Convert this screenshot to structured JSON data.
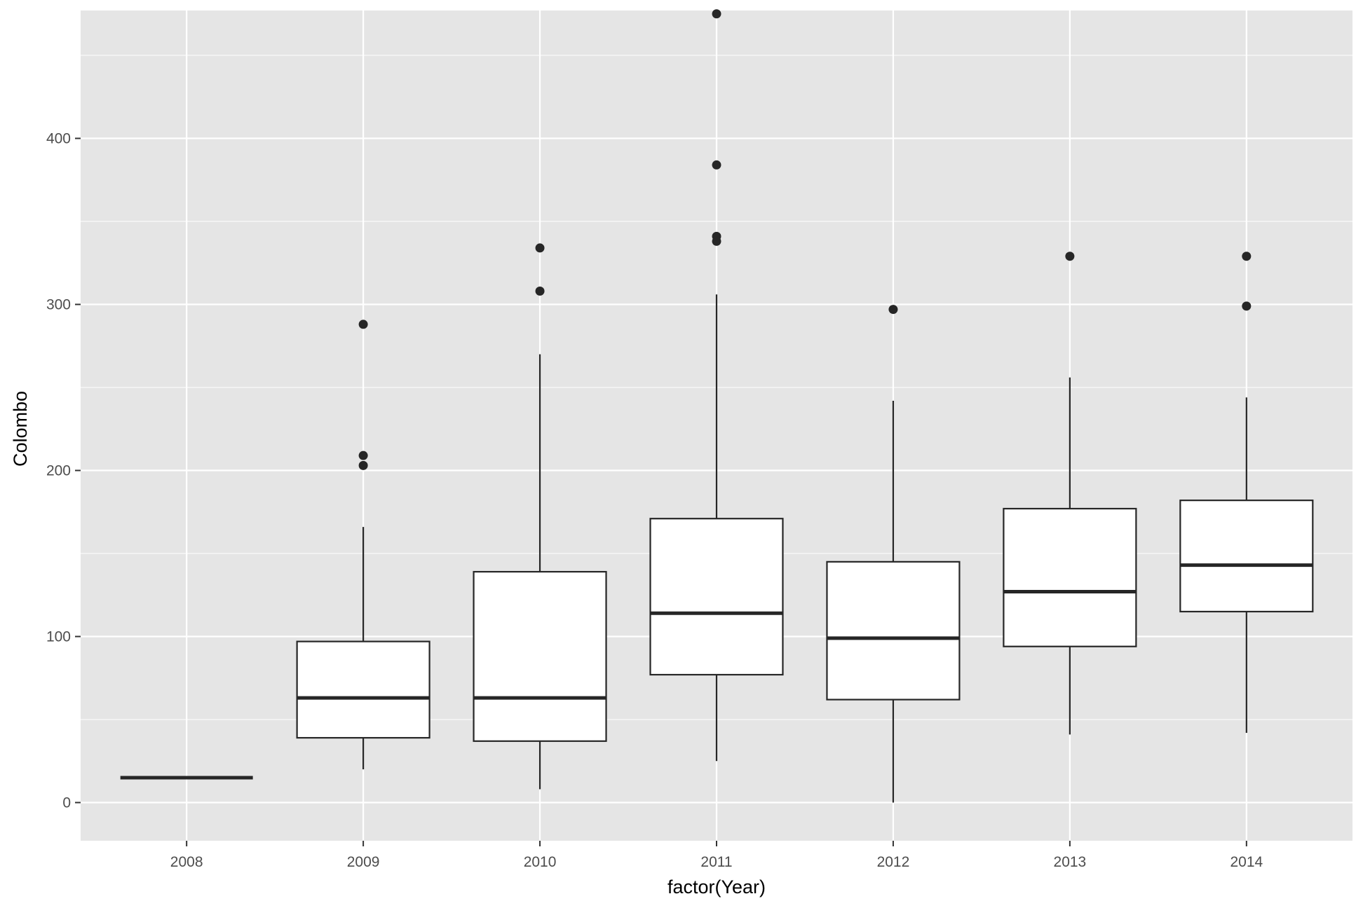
{
  "chart_data": {
    "type": "boxplot",
    "title": "",
    "xlabel": "factor(Year)",
    "ylabel": "Colombo",
    "ylim": [
      -23,
      477
    ],
    "yticks": [
      0,
      100,
      200,
      300,
      400
    ],
    "grid": true,
    "colors": {
      "panel": "#e5e5e5",
      "grid": "#ffffff",
      "box_fill": "#ffffff",
      "stroke": "#262626",
      "tick_text": "#4d4d4d"
    },
    "categories": [
      "2008",
      "2009",
      "2010",
      "2011",
      "2012",
      "2013",
      "2014"
    ],
    "boxes": [
      {
        "year": "2008",
        "whisker_low": 15,
        "q1": 15,
        "median": 15,
        "q3": 15,
        "whisker_high": 15,
        "outliers": []
      },
      {
        "year": "2009",
        "whisker_low": 20,
        "q1": 39,
        "median": 63,
        "q3": 97,
        "whisker_high": 166,
        "outliers": [
          203,
          209,
          288
        ]
      },
      {
        "year": "2010",
        "whisker_low": 8,
        "q1": 37,
        "median": 63,
        "q3": 139,
        "whisker_high": 270,
        "outliers": [
          308,
          334
        ]
      },
      {
        "year": "2011",
        "whisker_low": 25,
        "q1": 77,
        "median": 114,
        "q3": 171,
        "whisker_high": 306,
        "outliers": [
          338,
          341,
          384,
          475
        ]
      },
      {
        "year": "2012",
        "whisker_low": 0,
        "q1": 62,
        "median": 99,
        "q3": 145,
        "whisker_high": 242,
        "outliers": [
          297
        ]
      },
      {
        "year": "2013",
        "whisker_low": 41,
        "q1": 94,
        "median": 127,
        "q3": 177,
        "whisker_high": 256,
        "outliers": [
          329
        ]
      },
      {
        "year": "2014",
        "whisker_low": 42,
        "q1": 115,
        "median": 143,
        "q3": 182,
        "whisker_high": 244,
        "outliers": [
          299,
          329
        ]
      }
    ]
  }
}
